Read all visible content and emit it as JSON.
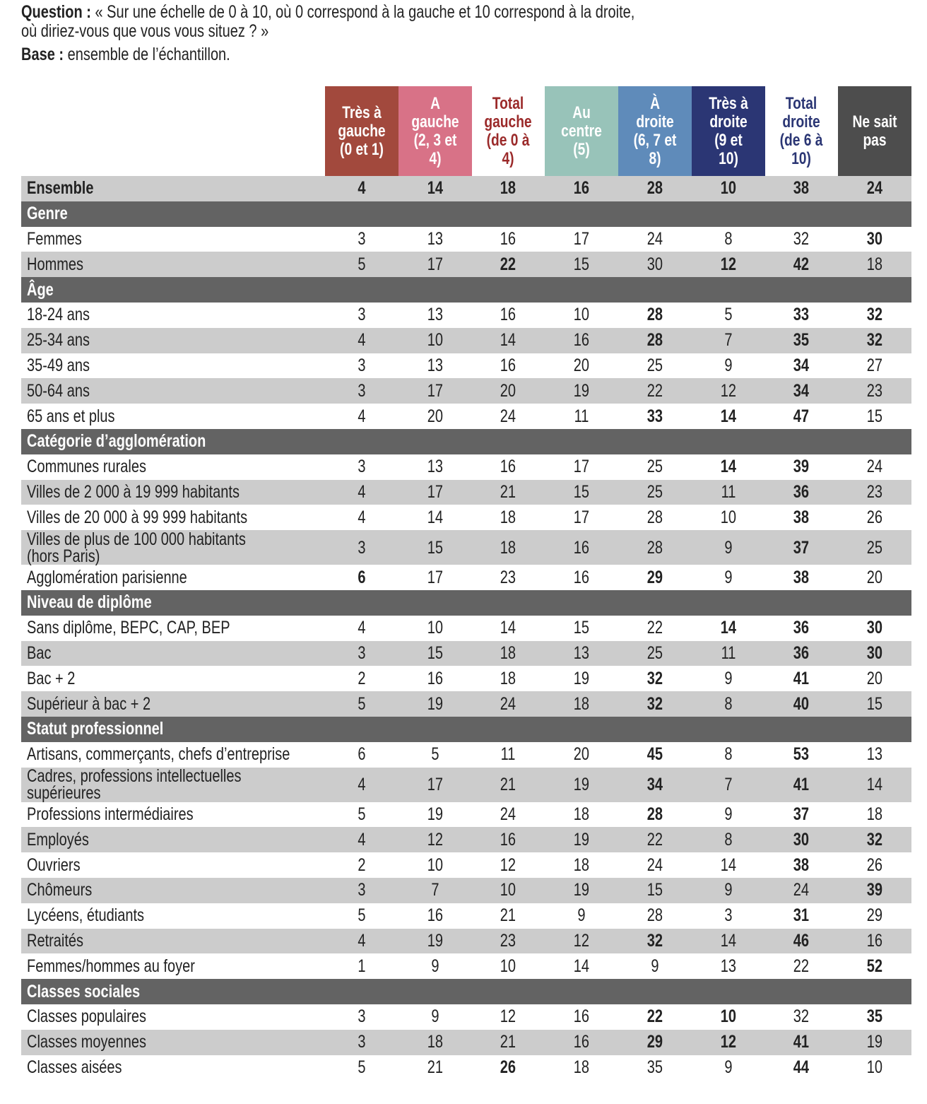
{
  "intro": {
    "question_label": "Question :",
    "question_line1": " « Sur une échelle de 0 à 10, où 0 correspond à la gauche et 10 correspond à la droite,",
    "question_line2": "où diriez-vous que vous vous situez ? »",
    "base_label": "Base :",
    "base_text": " ensemble de l’échantillon."
  },
  "columns": [
    {
      "label": "Très à gauche (0 et 1)",
      "bg": "#a2493d",
      "color": "#ffffff"
    },
    {
      "label": "A gauche (2, 3 et 4)",
      "bg": "#d87287",
      "color": "#ffffff"
    },
    {
      "label": "Total gauche (de 0 à 4)",
      "bg": "#ffffff",
      "color": "#9b2a2a"
    },
    {
      "label": "Au centre (5)",
      "bg": "#98c3b9",
      "color": "#ffffff"
    },
    {
      "label": "À droite (6, 7 et 8)",
      "bg": "#5f8bba",
      "color": "#ffffff"
    },
    {
      "label": "Très à droite (9 et 10)",
      "bg": "#2b3674",
      "color": "#ffffff"
    },
    {
      "label": "Total droite (de 6 à 10)",
      "bg": "#ffffff",
      "color": "#2b3674"
    },
    {
      "label": "Ne sait pas",
      "bg": "#4d4d4d",
      "color": "#ffffff"
    }
  ],
  "rows": [
    {
      "type": "total",
      "label": "Ensemble",
      "values": [
        "4",
        "14",
        "18",
        "16",
        "28",
        "10",
        "38",
        "24"
      ],
      "bold": [
        0,
        1,
        2,
        3,
        4,
        5,
        6,
        7
      ]
    },
    {
      "type": "section",
      "label": "Genre"
    },
    {
      "label": "Femmes",
      "values": [
        "3",
        "13",
        "16",
        "17",
        "24",
        "8",
        "32",
        "30"
      ],
      "bold": [
        7
      ]
    },
    {
      "label": "Hommes",
      "values": [
        "5",
        "17",
        "22",
        "15",
        "30",
        "12",
        "42",
        "18"
      ],
      "bold": [
        2,
        5,
        6
      ]
    },
    {
      "type": "section",
      "label": "Âge"
    },
    {
      "label": "18-24 ans",
      "values": [
        "3",
        "13",
        "16",
        "10",
        "28",
        "5",
        "33",
        "32"
      ],
      "bold": [
        4,
        6,
        7
      ]
    },
    {
      "label": "25-34 ans",
      "values": [
        "4",
        "10",
        "14",
        "16",
        "28",
        "7",
        "35",
        "32"
      ],
      "bold": [
        4,
        6,
        7
      ]
    },
    {
      "label": "35-49 ans",
      "values": [
        "3",
        "13",
        "16",
        "20",
        "25",
        "9",
        "34",
        "27"
      ],
      "bold": [
        6
      ]
    },
    {
      "label": "50-64 ans",
      "values": [
        "3",
        "17",
        "20",
        "19",
        "22",
        "12",
        "34",
        "23"
      ],
      "bold": [
        6
      ]
    },
    {
      "label": "65 ans et plus",
      "values": [
        "4",
        "20",
        "24",
        "11",
        "33",
        "14",
        "47",
        "15"
      ],
      "bold": [
        4,
        5,
        6
      ]
    },
    {
      "type": "section",
      "label": "Catégorie d’agglomération"
    },
    {
      "label": "Communes rurales",
      "values": [
        "3",
        "13",
        "16",
        "17",
        "25",
        "14",
        "39",
        "24"
      ],
      "bold": [
        5,
        6
      ]
    },
    {
      "label": "Villes de 2 000 à 19 999 habitants",
      "values": [
        "4",
        "17",
        "21",
        "15",
        "25",
        "11",
        "36",
        "23"
      ],
      "bold": [
        6
      ]
    },
    {
      "label": "Villes de 20 000 à 99 999 habitants",
      "values": [
        "4",
        "14",
        "18",
        "17",
        "28",
        "10",
        "38",
        "26"
      ],
      "bold": [
        6
      ]
    },
    {
      "label": "Villes de plus de 100 000 habitants",
      "label2": "(hors Paris)",
      "values": [
        "3",
        "15",
        "18",
        "16",
        "28",
        "9",
        "37",
        "25"
      ],
      "bold": [
        6
      ]
    },
    {
      "label": "Agglomération parisienne",
      "values": [
        "6",
        "17",
        "23",
        "16",
        "29",
        "9",
        "38",
        "20"
      ],
      "bold": [
        0,
        4,
        6
      ]
    },
    {
      "type": "section",
      "label": "Niveau de diplôme"
    },
    {
      "label": "Sans diplôme, BEPC, CAP, BEP",
      "values": [
        "4",
        "10",
        "14",
        "15",
        "22",
        "14",
        "36",
        "30"
      ],
      "bold": [
        5,
        6,
        7
      ]
    },
    {
      "label": "Bac",
      "values": [
        "3",
        "15",
        "18",
        "13",
        "25",
        "11",
        "36",
        "30"
      ],
      "bold": [
        6,
        7
      ]
    },
    {
      "label": "Bac + 2",
      "values": [
        "2",
        "16",
        "18",
        "19",
        "32",
        "9",
        "41",
        "20"
      ],
      "bold": [
        4,
        6
      ]
    },
    {
      "label": "Supérieur à bac + 2",
      "values": [
        "5",
        "19",
        "24",
        "18",
        "32",
        "8",
        "40",
        "15"
      ],
      "bold": [
        4,
        6
      ]
    },
    {
      "type": "section",
      "label": "Statut professionnel"
    },
    {
      "label": "Artisans, commerçants, chefs d’entreprise",
      "values": [
        "6",
        "5",
        "11",
        "20",
        "45",
        "8",
        "53",
        "13"
      ],
      "bold": [
        4,
        6
      ]
    },
    {
      "label": "Cadres, professions intellectuelles",
      "label2": "supérieures",
      "values": [
        "4",
        "17",
        "21",
        "19",
        "34",
        "7",
        "41",
        "14"
      ],
      "bold": [
        4,
        6
      ]
    },
    {
      "label": "Professions intermédiaires",
      "values": [
        "5",
        "19",
        "24",
        "18",
        "28",
        "9",
        "37",
        "18"
      ],
      "bold": [
        4,
        6
      ]
    },
    {
      "label": "Employés",
      "values": [
        "4",
        "12",
        "16",
        "19",
        "22",
        "8",
        "30",
        "32"
      ],
      "bold": [
        6,
        7
      ]
    },
    {
      "label": "Ouvriers",
      "values": [
        "2",
        "10",
        "12",
        "18",
        "24",
        "14",
        "38",
        "26"
      ],
      "bold": [
        6
      ]
    },
    {
      "label": "Chômeurs",
      "values": [
        "3",
        "7",
        "10",
        "19",
        "15",
        "9",
        "24",
        "39"
      ],
      "bold": [
        7
      ]
    },
    {
      "label": "Lycéens, étudiants",
      "values": [
        "5",
        "16",
        "21",
        "9",
        "28",
        "3",
        "31",
        "29"
      ],
      "bold": [
        6
      ]
    },
    {
      "label": "Retraités",
      "values": [
        "4",
        "19",
        "23",
        "12",
        "32",
        "14",
        "46",
        "16"
      ],
      "bold": [
        4,
        6
      ]
    },
    {
      "label": "Femmes/hommes au foyer",
      "values": [
        "1",
        "9",
        "10",
        "14",
        "9",
        "13",
        "22",
        "52"
      ],
      "bold": [
        7
      ]
    },
    {
      "type": "section",
      "label": "Classes sociales"
    },
    {
      "label": "Classes populaires",
      "values": [
        "3",
        "9",
        "12",
        "16",
        "22",
        "10",
        "32",
        "35"
      ],
      "bold": [
        4,
        5,
        7
      ]
    },
    {
      "label": "Classes moyennes",
      "values": [
        "3",
        "18",
        "21",
        "16",
        "29",
        "12",
        "41",
        "19"
      ],
      "bold": [
        4,
        5,
        6
      ]
    },
    {
      "label": "Classes aisées",
      "values": [
        "5",
        "21",
        "26",
        "18",
        "35",
        "9",
        "44",
        "10"
      ],
      "bold": [
        2,
        6
      ]
    }
  ]
}
